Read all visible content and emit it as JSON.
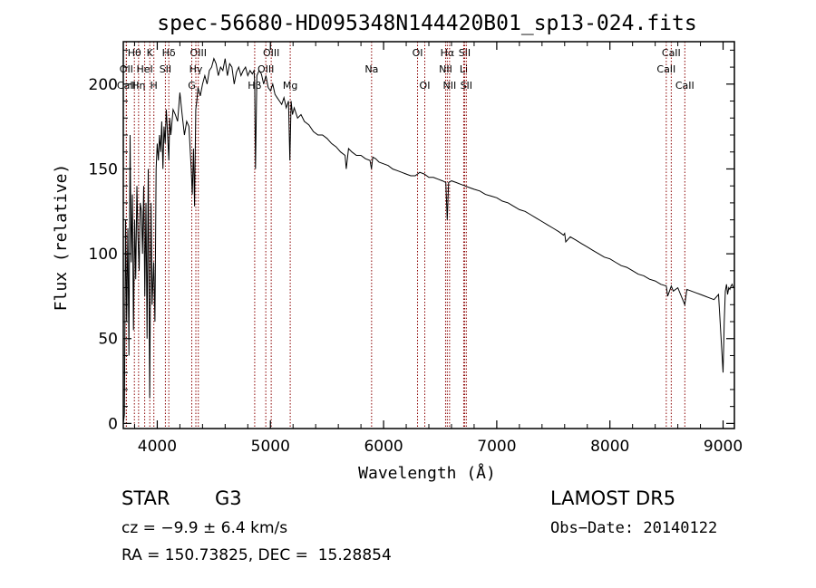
{
  "chart_data": {
    "type": "line",
    "title": "spec-56680-HD095348N144420B01_sp13-024.fits",
    "xlabel": "Wavelength (Å)",
    "ylabel": "Flux (relative)",
    "xlim": [
      3700,
      9100
    ],
    "ylim": [
      -3,
      225
    ],
    "x_ticks": [
      4000,
      5000,
      6000,
      7000,
      8000,
      9000
    ],
    "y_ticks": [
      0,
      50,
      100,
      150,
      200
    ],
    "grid": false,
    "series": [
      {
        "color": "#000000",
        "x": [
          3700,
          3710,
          3720,
          3730,
          3740,
          3750,
          3760,
          3770,
          3780,
          3790,
          3800,
          3810,
          3820,
          3830,
          3840,
          3850,
          3860,
          3870,
          3880,
          3890,
          3900,
          3910,
          3920,
          3933,
          3945,
          3955,
          3968,
          3980,
          3990,
          4000,
          4010,
          4020,
          4030,
          4040,
          4050,
          4060,
          4070,
          4080,
          4090,
          4102,
          4110,
          4120,
          4140,
          4160,
          4180,
          4200,
          4220,
          4240,
          4260,
          4280,
          4300,
          4310,
          4320,
          4330,
          4340,
          4350,
          4360,
          4380,
          4400,
          4420,
          4440,
          4460,
          4480,
          4500,
          4520,
          4540,
          4560,
          4580,
          4600,
          4620,
          4640,
          4660,
          4680,
          4700,
          4720,
          4740,
          4760,
          4780,
          4800,
          4820,
          4840,
          4855,
          4861,
          4868,
          4880,
          4900,
          4920,
          4940,
          4960,
          4980,
          5000,
          5020,
          5040,
          5060,
          5080,
          5100,
          5120,
          5140,
          5160,
          5172,
          5183,
          5195,
          5210,
          5240,
          5270,
          5300,
          5340,
          5380,
          5420,
          5460,
          5500,
          5540,
          5580,
          5620,
          5660,
          5670,
          5690,
          5720,
          5760,
          5800,
          5840,
          5880,
          5893,
          5905,
          5930,
          5960,
          6000,
          6040,
          6080,
          6120,
          6160,
          6200,
          6240,
          6280,
          6320,
          6360,
          6400,
          6440,
          6480,
          6520,
          6550,
          6563,
          6575,
          6600,
          6640,
          6680,
          6720,
          6760,
          6800,
          6850,
          6900,
          6950,
          7000,
          7050,
          7100,
          7150,
          7200,
          7250,
          7300,
          7350,
          7400,
          7450,
          7500,
          7550,
          7590,
          7600,
          7610,
          7650,
          7700,
          7750,
          7800,
          7850,
          7900,
          7950,
          8000,
          8050,
          8100,
          8150,
          8200,
          8250,
          8300,
          8350,
          8400,
          8450,
          8498,
          8510,
          8542,
          8560,
          8600,
          8662,
          8680,
          8720,
          8760,
          8800,
          8840,
          8880,
          8920,
          8960,
          9000,
          9010,
          9020,
          9030,
          9040,
          9050,
          9060,
          9070,
          9080,
          9090
        ],
        "y": [
          0,
          5,
          120,
          60,
          115,
          40,
          170,
          95,
          135,
          55,
          120,
          85,
          140,
          110,
          90,
          130,
          125,
          100,
          140,
          75,
          130,
          50,
          150,
          15,
          130,
          70,
          95,
          60,
          150,
          165,
          155,
          170,
          160,
          178,
          150,
          175,
          165,
          185,
          172,
          155,
          180,
          170,
          185,
          182,
          178,
          195,
          182,
          170,
          178,
          175,
          150,
          135,
          162,
          128,
          185,
          190,
          198,
          193,
          200,
          205,
          200,
          208,
          210,
          215,
          212,
          205,
          210,
          208,
          215,
          205,
          212,
          210,
          200,
          207,
          210,
          205,
          208,
          210,
          205,
          208,
          206,
          208,
          200,
          150,
          205,
          208,
          206,
          200,
          205,
          198,
          196,
          200,
          194,
          192,
          190,
          188,
          192,
          186,
          190,
          155,
          190,
          182,
          186,
          180,
          182,
          178,
          176,
          172,
          170,
          170,
          168,
          165,
          163,
          160,
          158,
          150,
          162,
          160,
          158,
          158,
          156,
          155,
          150,
          157,
          156,
          154,
          153,
          152,
          150,
          149,
          148,
          147,
          146,
          146,
          148,
          147,
          145,
          145,
          144,
          143,
          142,
          120,
          142,
          143,
          142,
          141,
          140,
          139,
          138,
          137,
          135,
          134,
          133,
          131,
          130,
          128,
          126,
          125,
          123,
          121,
          119,
          117,
          115,
          113,
          111,
          112,
          107,
          110,
          108,
          106,
          104,
          102,
          100,
          98,
          97,
          95,
          93,
          92,
          90,
          88,
          87,
          85,
          84,
          82,
          81,
          75,
          81,
          78,
          80,
          70,
          79,
          78,
          77,
          76,
          75,
          74,
          73,
          76,
          30,
          60,
          78,
          82,
          76,
          80,
          79,
          81,
          82,
          80
        ]
      }
    ],
    "line_markers": [
      {
        "label": "Hθ",
        "wavelength": 3798,
        "row": 0,
        "color": "#8b0000"
      },
      {
        "label": "OII",
        "wavelength": 3727,
        "row": 1,
        "color": "#8b0000"
      },
      {
        "label": "CaII",
        "wavelength": 3727,
        "row": 2,
        "color": "#8b0000"
      },
      {
        "label": "Hη",
        "wavelength": 3835,
        "row": 2,
        "color": "#8b0000"
      },
      {
        "label": "HeI",
        "wavelength": 3889,
        "row": 1,
        "color": "#8b0000"
      },
      {
        "label": "K",
        "wavelength": 3934,
        "row": 0,
        "color": "#8b0000"
      },
      {
        "label": "H",
        "wavelength": 3970,
        "row": 2,
        "color": "#8b0000"
      },
      {
        "label": "SII",
        "wavelength": 4072,
        "row": 1,
        "color": "#8b0000"
      },
      {
        "label": "Hδ",
        "wavelength": 4102,
        "row": 0,
        "color": "#8b0000"
      },
      {
        "label": "OIII",
        "wavelength": 4363,
        "row": 0,
        "color": "#8b0000"
      },
      {
        "label": "Hγ",
        "wavelength": 4341,
        "row": 1,
        "color": "#8b0000"
      },
      {
        "label": "G",
        "wavelength": 4305,
        "row": 2,
        "color": "#8b0000"
      },
      {
        "label": "Hβ",
        "wavelength": 4861,
        "row": 2,
        "color": "#8b0000"
      },
      {
        "label": "OIII",
        "wavelength": 5007,
        "row": 0,
        "color": "#8b0000"
      },
      {
        "label": "OIII",
        "wavelength": 4959,
        "row": 1,
        "color": "#8b0000"
      },
      {
        "label": "Mg",
        "wavelength": 5175,
        "row": 2,
        "color": "#8b0000"
      },
      {
        "label": "Na",
        "wavelength": 5894,
        "row": 1,
        "color": "#8b0000"
      },
      {
        "label": "OI",
        "wavelength": 6300,
        "row": 0,
        "color": "#8b0000"
      },
      {
        "label": "OI",
        "wavelength": 6364,
        "row": 2,
        "color": "#8b0000"
      },
      {
        "label": "Hα",
        "wavelength": 6563,
        "row": 0,
        "color": "#8b0000"
      },
      {
        "label": "NII",
        "wavelength": 6548,
        "row": 1,
        "color": "#8b0000"
      },
      {
        "label": "NII",
        "wavelength": 6583,
        "row": 2,
        "color": "#8b0000"
      },
      {
        "label": "SII",
        "wavelength": 6716,
        "row": 0,
        "color": "#8b0000"
      },
      {
        "label": "Li",
        "wavelength": 6708,
        "row": 1,
        "color": "#8b0000"
      },
      {
        "label": "SII",
        "wavelength": 6731,
        "row": 2,
        "color": "#8b0000"
      },
      {
        "label": "CaII",
        "wavelength": 8542,
        "row": 0,
        "color": "#8b0000"
      },
      {
        "label": "CaII",
        "wavelength": 8498,
        "row": 1,
        "color": "#8b0000"
      },
      {
        "label": "CaII",
        "wavelength": 8662,
        "row": 2,
        "color": "#8b0000"
      }
    ]
  },
  "footer": {
    "object_type": "STAR",
    "subclass": "G3",
    "survey": "LAMOST DR5",
    "cz": "cz = −9.9 ± 6.4 km/s",
    "obs_date": "Obs−Date: 20140122",
    "coords": "RA = 150.73825, DEC =  15.28854"
  }
}
